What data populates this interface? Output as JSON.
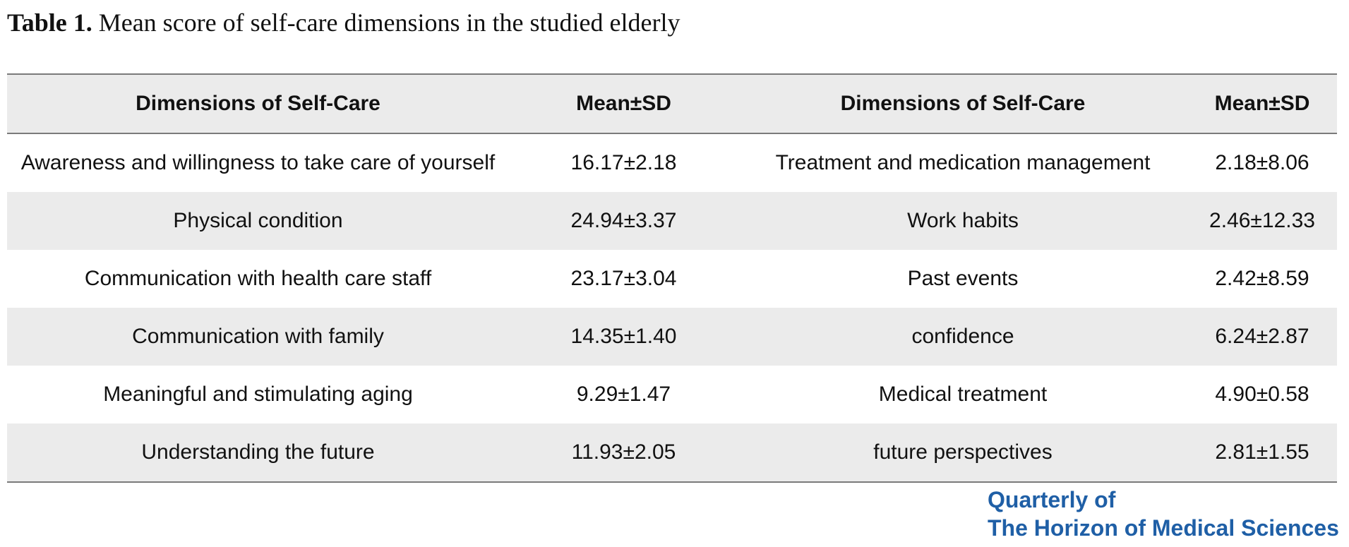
{
  "caption": {
    "label": "Table 1.",
    "text": " Mean score of self-care dimensions in the studied elderly"
  },
  "table": {
    "headers": [
      "Dimensions of Self-Care",
      "Mean±SD",
      "Dimensions of Self-Care",
      "Mean±SD"
    ],
    "rows": [
      [
        "Awareness and willingness to take care of yourself",
        "16.17±2.18",
        "Treatment and medication management",
        "2.18±8.06"
      ],
      [
        "Physical condition",
        "24.94±3.37",
        "Work habits",
        "2.46±12.33"
      ],
      [
        "Communication with health care staff",
        "23.17±3.04",
        "Past events",
        "2.42±8.59"
      ],
      [
        "Communication with family",
        "14.35±1.40",
        "confidence",
        "6.24±2.87"
      ],
      [
        "Meaningful and stimulating aging",
        "9.29±1.47",
        "Medical treatment",
        "4.90±0.58"
      ],
      [
        "Understanding the future",
        "11.93±2.05",
        "future perspectives",
        "2.81±1.55"
      ]
    ]
  },
  "logo": {
    "line1": "Quarterly of",
    "line2": "The Horizon of Medical Sciences"
  },
  "colors": {
    "header_bg": "#ebebeb",
    "rule": "#7a7a7a",
    "logo_blue": "#1f5fa6"
  }
}
